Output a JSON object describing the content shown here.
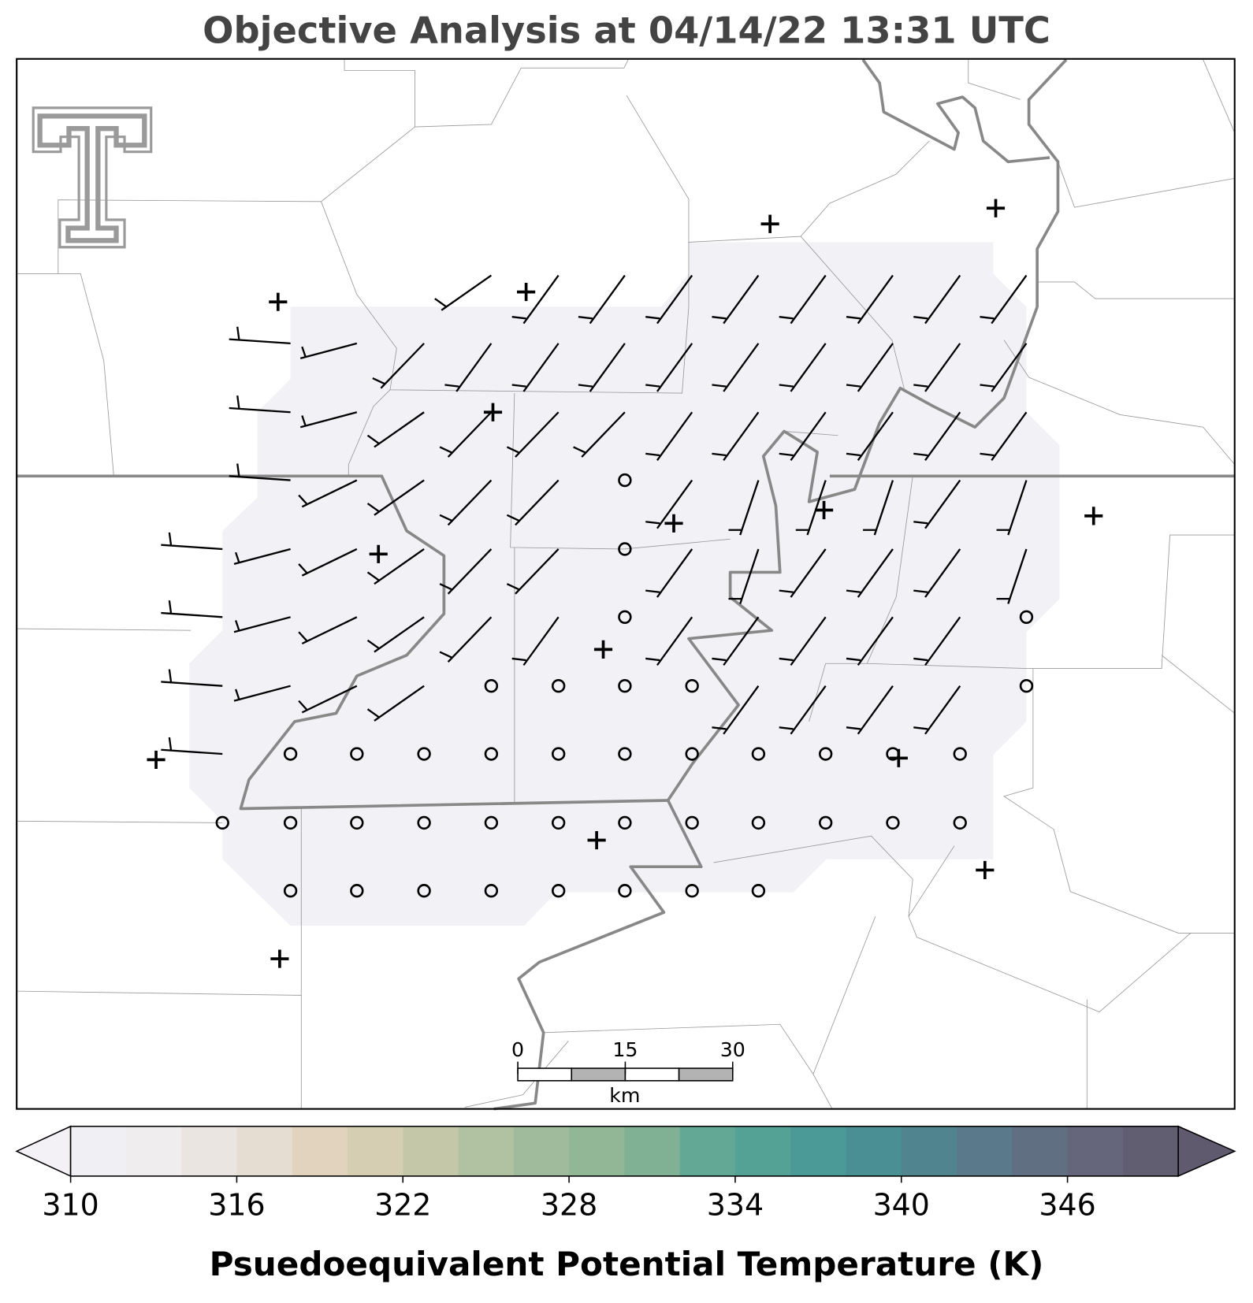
{
  "title": "Objective Analysis at 04/14/22 13:31 UTC",
  "colorbar": {
    "label": "Psuedoequivalent Potential Temperature (K)",
    "range": [
      310,
      350
    ],
    "ticks": [
      310,
      316,
      322,
      328,
      334,
      340,
      346
    ],
    "colors": [
      "#f0eff4",
      "#efedee",
      "#ebe5e2",
      "#e5ddd2",
      "#e1d3bd",
      "#d5ceb2",
      "#c5c8a8",
      "#b1c2a2",
      "#a0bb9b",
      "#91b797",
      "#80b195",
      "#63a795",
      "#54a296",
      "#4b9a97",
      "#498f94",
      "#508590",
      "#5a7a8b",
      "#616f83",
      "#65667c",
      "#625e72"
    ],
    "under_color": "#f3f1f6",
    "over_color": "#5f5a6e"
  },
  "scale_bar": {
    "range": [
      0,
      30
    ],
    "ticks": [
      0,
      15,
      30
    ],
    "unit": "km"
  }
}
